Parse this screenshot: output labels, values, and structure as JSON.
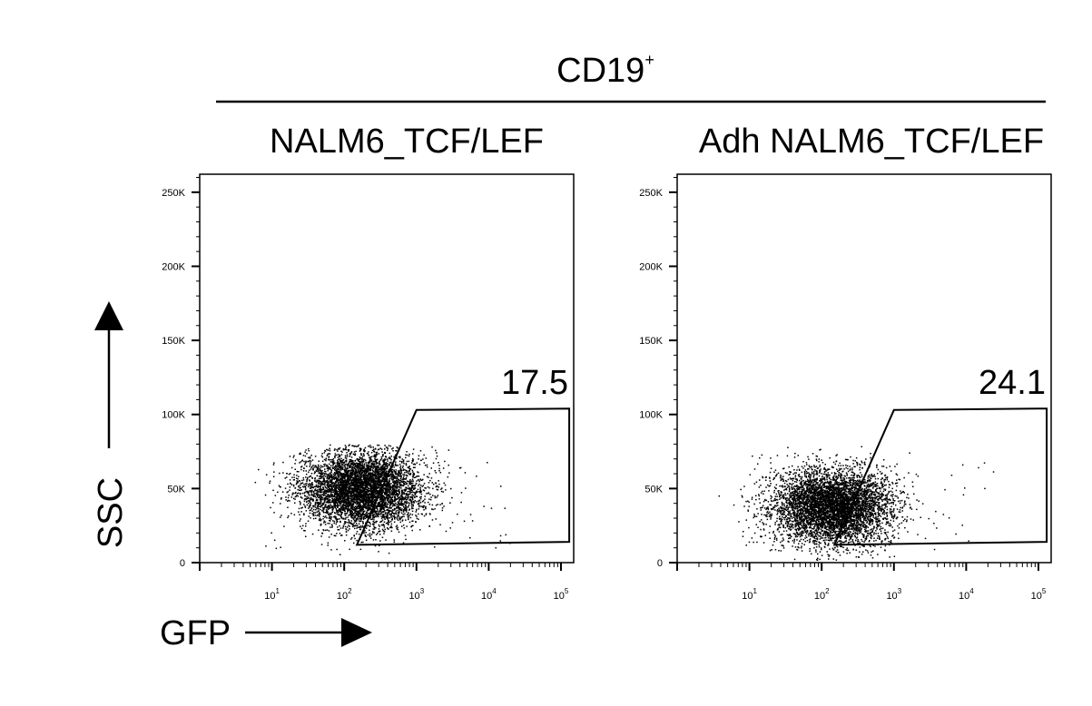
{
  "figure": {
    "header": {
      "base": "CD19",
      "sup": "+"
    },
    "y_axis_label": "SSC",
    "x_axis_label": "GFP"
  },
  "chart_data": [
    {
      "type": "scatter",
      "title": "NALM6_TCF/LEF",
      "xlabel": "GFP",
      "ylabel": "SSC",
      "x_scale": "log",
      "xlim": [
        1,
        150000
      ],
      "ylim": [
        0,
        262144
      ],
      "x_ticks": [
        "10^1",
        "10^2",
        "10^3",
        "10^4",
        "10^5"
      ],
      "y_ticks": [
        "0",
        "50K",
        "100K",
        "150K",
        "200K",
        "250K"
      ],
      "y_tick_values": [
        0,
        50000,
        100000,
        150000,
        200000,
        250000
      ],
      "gate": {
        "label": "17.5",
        "polygon": [
          [
            150,
            12000
          ],
          [
            1000,
            103000
          ],
          [
            130000,
            104000
          ],
          [
            130000,
            14000
          ]
        ]
      },
      "population": {
        "center_x": 170,
        "center_y": 50000,
        "n_events": 5500
      }
    },
    {
      "type": "scatter",
      "title": "Adh NALM6_TCF/LEF",
      "xlabel": "GFP",
      "ylabel": "SSC",
      "x_scale": "log",
      "xlim": [
        1,
        150000
      ],
      "ylim": [
        0,
        262144
      ],
      "x_ticks": [
        "10^1",
        "10^2",
        "10^3",
        "10^4",
        "10^5"
      ],
      "y_ticks": [
        "0",
        "50K",
        "100K",
        "150K",
        "200K",
        "250K"
      ],
      "y_tick_values": [
        0,
        50000,
        100000,
        150000,
        200000,
        250000
      ],
      "gate": {
        "label": "24.1",
        "polygon": [
          [
            150,
            12000
          ],
          [
            1000,
            103000
          ],
          [
            130000,
            104000
          ],
          [
            130000,
            14000
          ]
        ]
      },
      "population": {
        "center_x": 140,
        "center_y": 38000,
        "n_events": 5500
      }
    }
  ]
}
